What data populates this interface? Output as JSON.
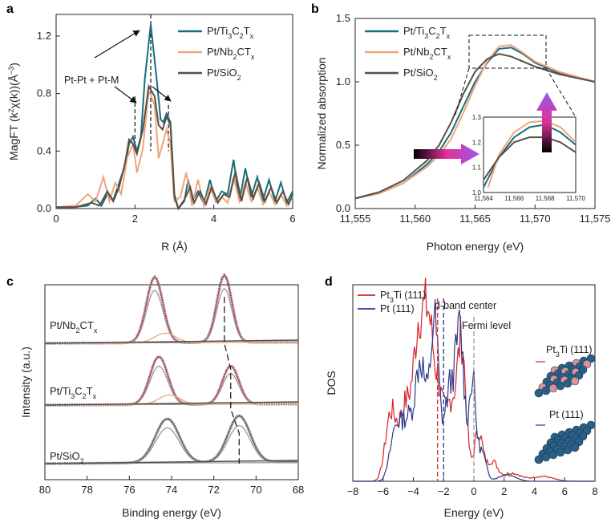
{
  "chart_data": [
    {
      "panel": "a",
      "type": "line",
      "xlabel": "R (Å)",
      "ylabel_parts": [
        "MagFT (k",
        "2",
        "χ(k))(Å",
        "−3",
        ")"
      ],
      "xlim": [
        0,
        6
      ],
      "ylim": [
        0,
        1.35
      ],
      "xticks": [
        "0",
        "2",
        "4",
        "6"
      ],
      "yticks": [
        "0.0",
        "0.4",
        "0.8",
        "1.2"
      ],
      "annotation": "Pt-Pt + Pt-M",
      "dashed_positions": [
        2.0,
        2.4,
        2.85
      ],
      "legend": [
        {
          "parts": [
            "Pt/Ti",
            "3",
            "C",
            "2",
            "T",
            "x"
          ],
          "color": "#176e7e"
        },
        {
          "parts": [
            "Pt/Nb",
            "2",
            "CT",
            "x"
          ],
          "color": "#f0a47c"
        },
        {
          "parts": [
            "Pt/SiO",
            "2"
          ],
          "color": "#5a4e46"
        }
      ],
      "series": [
        {
          "name": "Pt/Ti3C2Tx",
          "color": "#176e7e",
          "points": [
            [
              0,
              0.01
            ],
            [
              0.4,
              0.01
            ],
            [
              0.8,
              0.02
            ],
            [
              1.0,
              0.07
            ],
            [
              1.15,
              0.02
            ],
            [
              1.3,
              0.1
            ],
            [
              1.45,
              0.06
            ],
            [
              1.6,
              0.18
            ],
            [
              1.75,
              0.3
            ],
            [
              1.85,
              0.45
            ],
            [
              1.95,
              0.5
            ],
            [
              2.05,
              0.4
            ],
            [
              2.15,
              0.5
            ],
            [
              2.25,
              0.9
            ],
            [
              2.4,
              1.28
            ],
            [
              2.55,
              0.9
            ],
            [
              2.65,
              0.62
            ],
            [
              2.72,
              0.6
            ],
            [
              2.8,
              0.66
            ],
            [
              2.9,
              0.6
            ],
            [
              3.0,
              0.1
            ],
            [
              3.1,
              0.0
            ],
            [
              3.25,
              0.05
            ],
            [
              3.35,
              0.2
            ],
            [
              3.45,
              0.05
            ],
            [
              3.6,
              0.12
            ],
            [
              3.75,
              0.03
            ],
            [
              3.9,
              0.2
            ],
            [
              4.05,
              0.05
            ],
            [
              4.2,
              0.12
            ],
            [
              4.35,
              0.1
            ],
            [
              4.5,
              0.34
            ],
            [
              4.65,
              0.05
            ],
            [
              4.8,
              0.28
            ],
            [
              4.95,
              0.08
            ],
            [
              5.1,
              0.22
            ],
            [
              5.25,
              0.06
            ],
            [
              5.4,
              0.2
            ],
            [
              5.55,
              0.05
            ],
            [
              5.7,
              0.18
            ],
            [
              5.85,
              0.04
            ],
            [
              6.0,
              0.12
            ]
          ]
        },
        {
          "name": "Pt/Nb2CTx",
          "color": "#f0a47c",
          "points": [
            [
              0,
              0.01
            ],
            [
              0.5,
              0.02
            ],
            [
              0.8,
              0.1
            ],
            [
              1.0,
              0.05
            ],
            [
              1.2,
              0.22
            ],
            [
              1.35,
              0.05
            ],
            [
              1.5,
              0.18
            ],
            [
              1.65,
              0.1
            ],
            [
              1.8,
              0.35
            ],
            [
              1.95,
              0.45
            ],
            [
              2.05,
              0.25
            ],
            [
              2.2,
              0.42
            ],
            [
              2.35,
              0.82
            ],
            [
              2.5,
              0.72
            ],
            [
              2.6,
              0.35
            ],
            [
              2.7,
              0.45
            ],
            [
              2.8,
              0.55
            ],
            [
              2.9,
              0.45
            ],
            [
              3.0,
              0.05
            ],
            [
              3.15,
              0.08
            ],
            [
              3.3,
              0.25
            ],
            [
              3.45,
              0.02
            ],
            [
              3.6,
              0.2
            ],
            [
              3.75,
              0.02
            ],
            [
              3.9,
              0.15
            ],
            [
              4.05,
              0.05
            ],
            [
              4.2,
              0.08
            ],
            [
              4.35,
              0.04
            ],
            [
              4.5,
              0.22
            ],
            [
              4.65,
              0.05
            ],
            [
              4.8,
              0.18
            ],
            [
              4.95,
              0.05
            ],
            [
              5.1,
              0.15
            ],
            [
              5.25,
              0.03
            ],
            [
              5.4,
              0.12
            ],
            [
              5.55,
              0.03
            ],
            [
              5.7,
              0.1
            ],
            [
              5.85,
              0.02
            ],
            [
              6.0,
              0.08
            ]
          ]
        },
        {
          "name": "Pt/SiO2",
          "color": "#5a4e46",
          "points": [
            [
              0,
              0.01
            ],
            [
              0.5,
              0.01
            ],
            [
              0.9,
              0.04
            ],
            [
              1.1,
              0.02
            ],
            [
              1.3,
              0.12
            ],
            [
              1.45,
              0.05
            ],
            [
              1.6,
              0.15
            ],
            [
              1.75,
              0.32
            ],
            [
              1.85,
              0.48
            ],
            [
              1.95,
              0.45
            ],
            [
              2.05,
              0.38
            ],
            [
              2.2,
              0.55
            ],
            [
              2.35,
              0.85
            ],
            [
              2.5,
              0.78
            ],
            [
              2.6,
              0.58
            ],
            [
              2.7,
              0.55
            ],
            [
              2.8,
              0.64
            ],
            [
              2.9,
              0.58
            ],
            [
              3.0,
              0.08
            ],
            [
              3.1,
              0.0
            ],
            [
              3.25,
              0.06
            ],
            [
              3.4,
              0.15
            ],
            [
              3.5,
              0.04
            ],
            [
              3.65,
              0.12
            ],
            [
              3.8,
              0.03
            ],
            [
              3.95,
              0.15
            ],
            [
              4.1,
              0.04
            ],
            [
              4.25,
              0.1
            ],
            [
              4.4,
              0.08
            ],
            [
              4.55,
              0.26
            ],
            [
              4.7,
              0.05
            ],
            [
              4.85,
              0.22
            ],
            [
              5.0,
              0.07
            ],
            [
              5.15,
              0.18
            ],
            [
              5.3,
              0.05
            ],
            [
              5.45,
              0.15
            ],
            [
              5.6,
              0.04
            ],
            [
              5.75,
              0.12
            ],
            [
              5.9,
              0.03
            ],
            [
              6.0,
              0.1
            ]
          ]
        }
      ]
    },
    {
      "panel": "b",
      "type": "line",
      "xlabel": "Photon energy (eV)",
      "ylabel": "Normalized absorption",
      "xlim": [
        11555,
        11575
      ],
      "ylim": [
        0,
        1.5
      ],
      "xticks": [
        "11,555",
        "11,560",
        "11,565",
        "11,570",
        "11,575"
      ],
      "yticks": [
        "0.0",
        "0.5",
        "1.0",
        "1.5"
      ],
      "legend": [
        {
          "parts": [
            "Pt/Ti",
            "3",
            "C",
            "2",
            "T",
            "x"
          ],
          "color": "#176e7e"
        },
        {
          "parts": [
            "Pt/Nb",
            "2",
            "CT",
            "x"
          ],
          "color": "#f0a47c"
        },
        {
          "parts": [
            "Pt/SiO",
            "2"
          ],
          "color": "#5a4e46"
        }
      ],
      "inset": {
        "xlim": [
          11564,
          11570
        ],
        "ylim": [
          1.0,
          1.3
        ],
        "xticks": [
          "11,564",
          "11,566",
          "11,568",
          "11,570"
        ],
        "yticks": [
          "1.0",
          "1.1",
          "1.2",
          "1.3"
        ]
      },
      "series": [
        {
          "name": "Pt/Ti3C2Tx",
          "color": "#176e7e",
          "points": [
            [
              11555,
              0.08
            ],
            [
              11557,
              0.12
            ],
            [
              11559,
              0.2
            ],
            [
              11561,
              0.35
            ],
            [
              11562,
              0.45
            ],
            [
              11563,
              0.6
            ],
            [
              11564,
              0.8
            ],
            [
              11565,
              1.0
            ],
            [
              11566,
              1.15
            ],
            [
              11567,
              1.26
            ],
            [
              11568,
              1.27
            ],
            [
              11569,
              1.22
            ],
            [
              11570,
              1.15
            ],
            [
              11572,
              1.07
            ],
            [
              11575,
              1.0
            ]
          ]
        },
        {
          "name": "Pt/Nb2CTx",
          "color": "#f0a47c",
          "points": [
            [
              11555,
              0.08
            ],
            [
              11557,
              0.12
            ],
            [
              11559,
              0.2
            ],
            [
              11561,
              0.33
            ],
            [
              11562,
              0.42
            ],
            [
              11563,
              0.55
            ],
            [
              11564,
              0.75
            ],
            [
              11565,
              0.97
            ],
            [
              11566,
              1.16
            ],
            [
              11567,
              1.28
            ],
            [
              11568,
              1.29
            ],
            [
              11569,
              1.23
            ],
            [
              11570,
              1.16
            ],
            [
              11572,
              1.08
            ],
            [
              11575,
              1.0
            ]
          ]
        },
        {
          "name": "Pt/SiO2",
          "color": "#5a4e46",
          "points": [
            [
              11555,
              0.08
            ],
            [
              11557,
              0.13
            ],
            [
              11559,
              0.22
            ],
            [
              11561,
              0.38
            ],
            [
              11562,
              0.5
            ],
            [
              11563,
              0.68
            ],
            [
              11564,
              0.9
            ],
            [
              11565,
              1.08
            ],
            [
              11566,
              1.18
            ],
            [
              11567,
              1.22
            ],
            [
              11568,
              1.2
            ],
            [
              11569,
              1.16
            ],
            [
              11570,
              1.12
            ],
            [
              11572,
              1.06
            ],
            [
              11575,
              1.0
            ]
          ]
        }
      ]
    },
    {
      "panel": "c",
      "type": "line",
      "xlabel": "Binding energy (eV)",
      "ylabel": "Intensity (a.u.)",
      "xlim": [
        80,
        68
      ],
      "xticks": [
        "80",
        "78",
        "76",
        "74",
        "72",
        "70",
        "68"
      ],
      "labels": [
        {
          "parts": [
            "Pt/Nb",
            "2",
            "CT",
            "x"
          ]
        },
        {
          "parts": [
            "Pt/Ti",
            "3",
            "C",
            "2",
            "T",
            "x"
          ]
        },
        {
          "parts": [
            "Pt/SiO",
            "2"
          ]
        }
      ],
      "fit_color": "#c43c46",
      "dashed_peaks": [
        71.5,
        71.2,
        70.8
      ],
      "spectra": [
        {
          "name": "Pt/Nb2CTx",
          "offset": 2,
          "peaks": [
            [
              74.8,
              1.0
            ],
            [
              71.5,
              1.0
            ]
          ]
        },
        {
          "name": "Pt/Ti3C2Tx",
          "offset": 1,
          "peaks": [
            [
              74.6,
              0.85
            ],
            [
              71.2,
              0.75
            ]
          ]
        },
        {
          "name": "Pt/SiO2",
          "offset": 0,
          "peaks": [
            [
              74.2,
              0.6
            ],
            [
              70.8,
              0.65
            ]
          ]
        }
      ]
    },
    {
      "panel": "d",
      "type": "line",
      "xlabel": "Energy (eV)",
      "ylabel": "DOS",
      "xlim": [
        -8,
        8
      ],
      "xticks": [
        "−8",
        "−6",
        "−4",
        "−2",
        "0",
        "2",
        "4",
        "6",
        "8"
      ],
      "legend": [
        {
          "parts": [
            "Pt",
            "3",
            "Ti (111)"
          ],
          "color": "#d8232a"
        },
        {
          "parts": [
            "Pt (111)"
          ],
          "color": "#2c3a8c"
        }
      ],
      "annotations": {
        "dband": "d-band center",
        "fermi": "Fermi level"
      },
      "dband_centers": [
        -2.4,
        -2.0
      ],
      "fermi": 0,
      "structures": [
        {
          "parts": [
            "Pt",
            "3",
            "Ti (111)"
          ]
        },
        {
          "parts": [
            "Pt (111)"
          ]
        }
      ]
    }
  ]
}
